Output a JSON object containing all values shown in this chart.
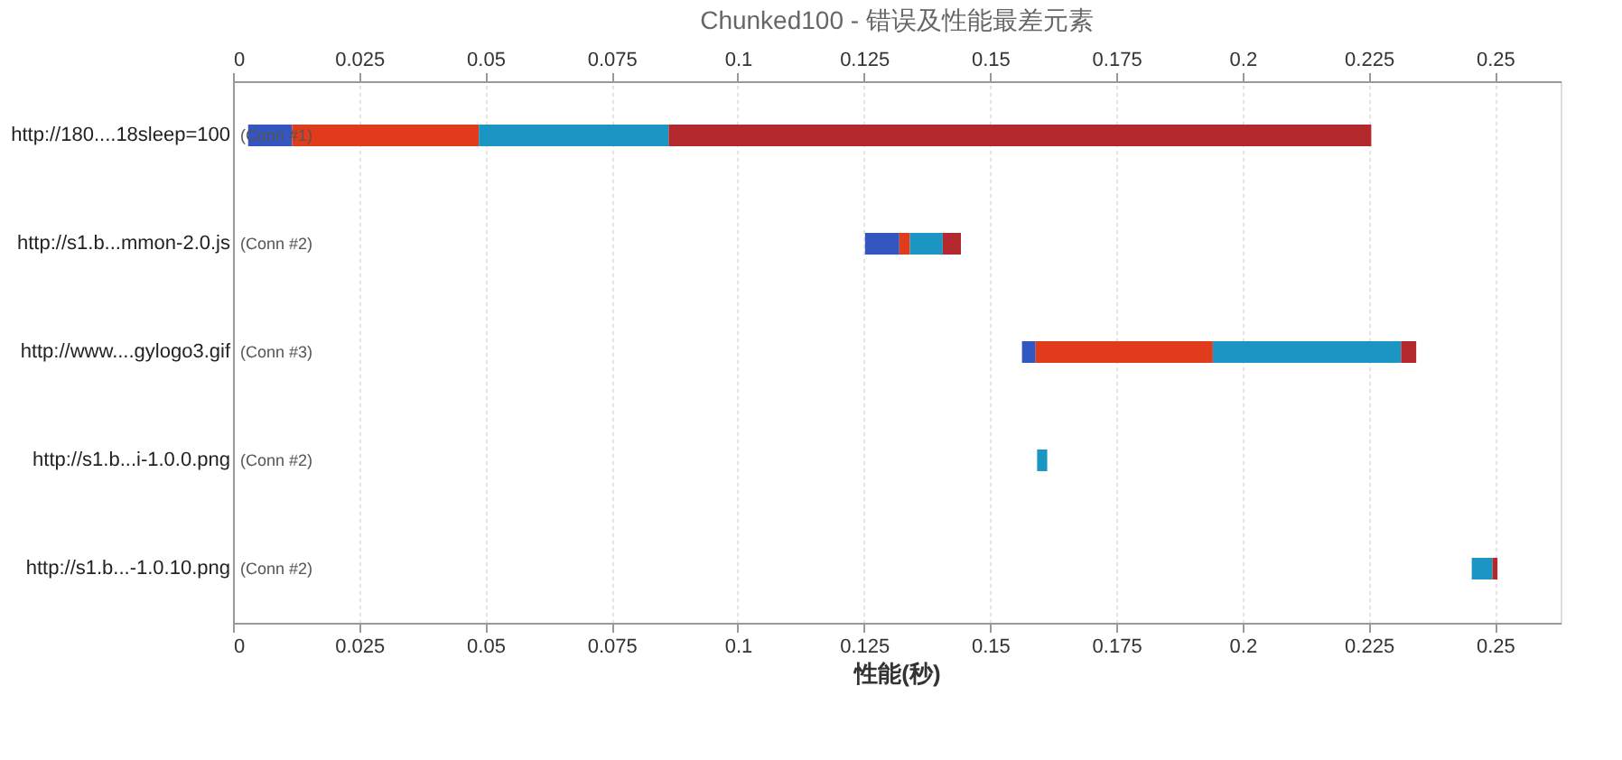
{
  "chart_data": {
    "type": "bar",
    "title": "Chunked100 - 错误及性能最差元素",
    "xlabel": "性能(秒)",
    "orientation": "horizontal",
    "categories": [
      "http://180....18sleep=100",
      "http://s1.b...mmon-2.0.js",
      "http://www....gylogo3.gif",
      "http://s1.b...i-1.0.0.png",
      "http://s1.b...-1.0.10.png"
    ],
    "series": [
      {
        "color": "#3456c0",
        "base": [
          0.003,
          0.1252,
          0.1563,
          null,
          null
        ],
        "values": [
          0.0087,
          0.0068,
          0.0027,
          null,
          null
        ]
      },
      {
        "color": "#e03c1c",
        "base": [
          0.0117,
          0.132,
          0.159,
          null,
          null
        ],
        "values": [
          0.037,
          0.0021,
          0.0351,
          null,
          null
        ]
      },
      {
        "color": "#1b96c2",
        "base": [
          0.0487,
          0.1341,
          0.1941,
          0.1593,
          0.2454
        ],
        "values": [
          0.0376,
          0.0065,
          0.0373,
          0.002,
          0.0041
        ]
      },
      {
        "color": "#b3282c",
        "base": [
          0.0863,
          0.1406,
          0.2314,
          null,
          0.2495
        ],
        "values": [
          0.1392,
          0.0036,
          0.003,
          null,
          0.001
        ]
      }
    ],
    "xlim": [
      0,
      0.263
    ],
    "xticks": [
      0,
      0.025,
      0.05,
      0.075,
      0.1,
      0.125,
      0.15,
      0.175,
      0.2,
      0.225,
      0.25
    ],
    "x2lim": [
      0,
      0.263
    ],
    "x2ticks": [
      0,
      0.025,
      0.05,
      0.075,
      0.1,
      0.125,
      0.15,
      0.175,
      0.2,
      0.225,
      0.25
    ],
    "grid": "x",
    "annotations": [
      "(Conn #1)",
      "(Conn #2)",
      "(Conn #3)",
      "(Conn #2)",
      "(Conn #2)"
    ]
  }
}
